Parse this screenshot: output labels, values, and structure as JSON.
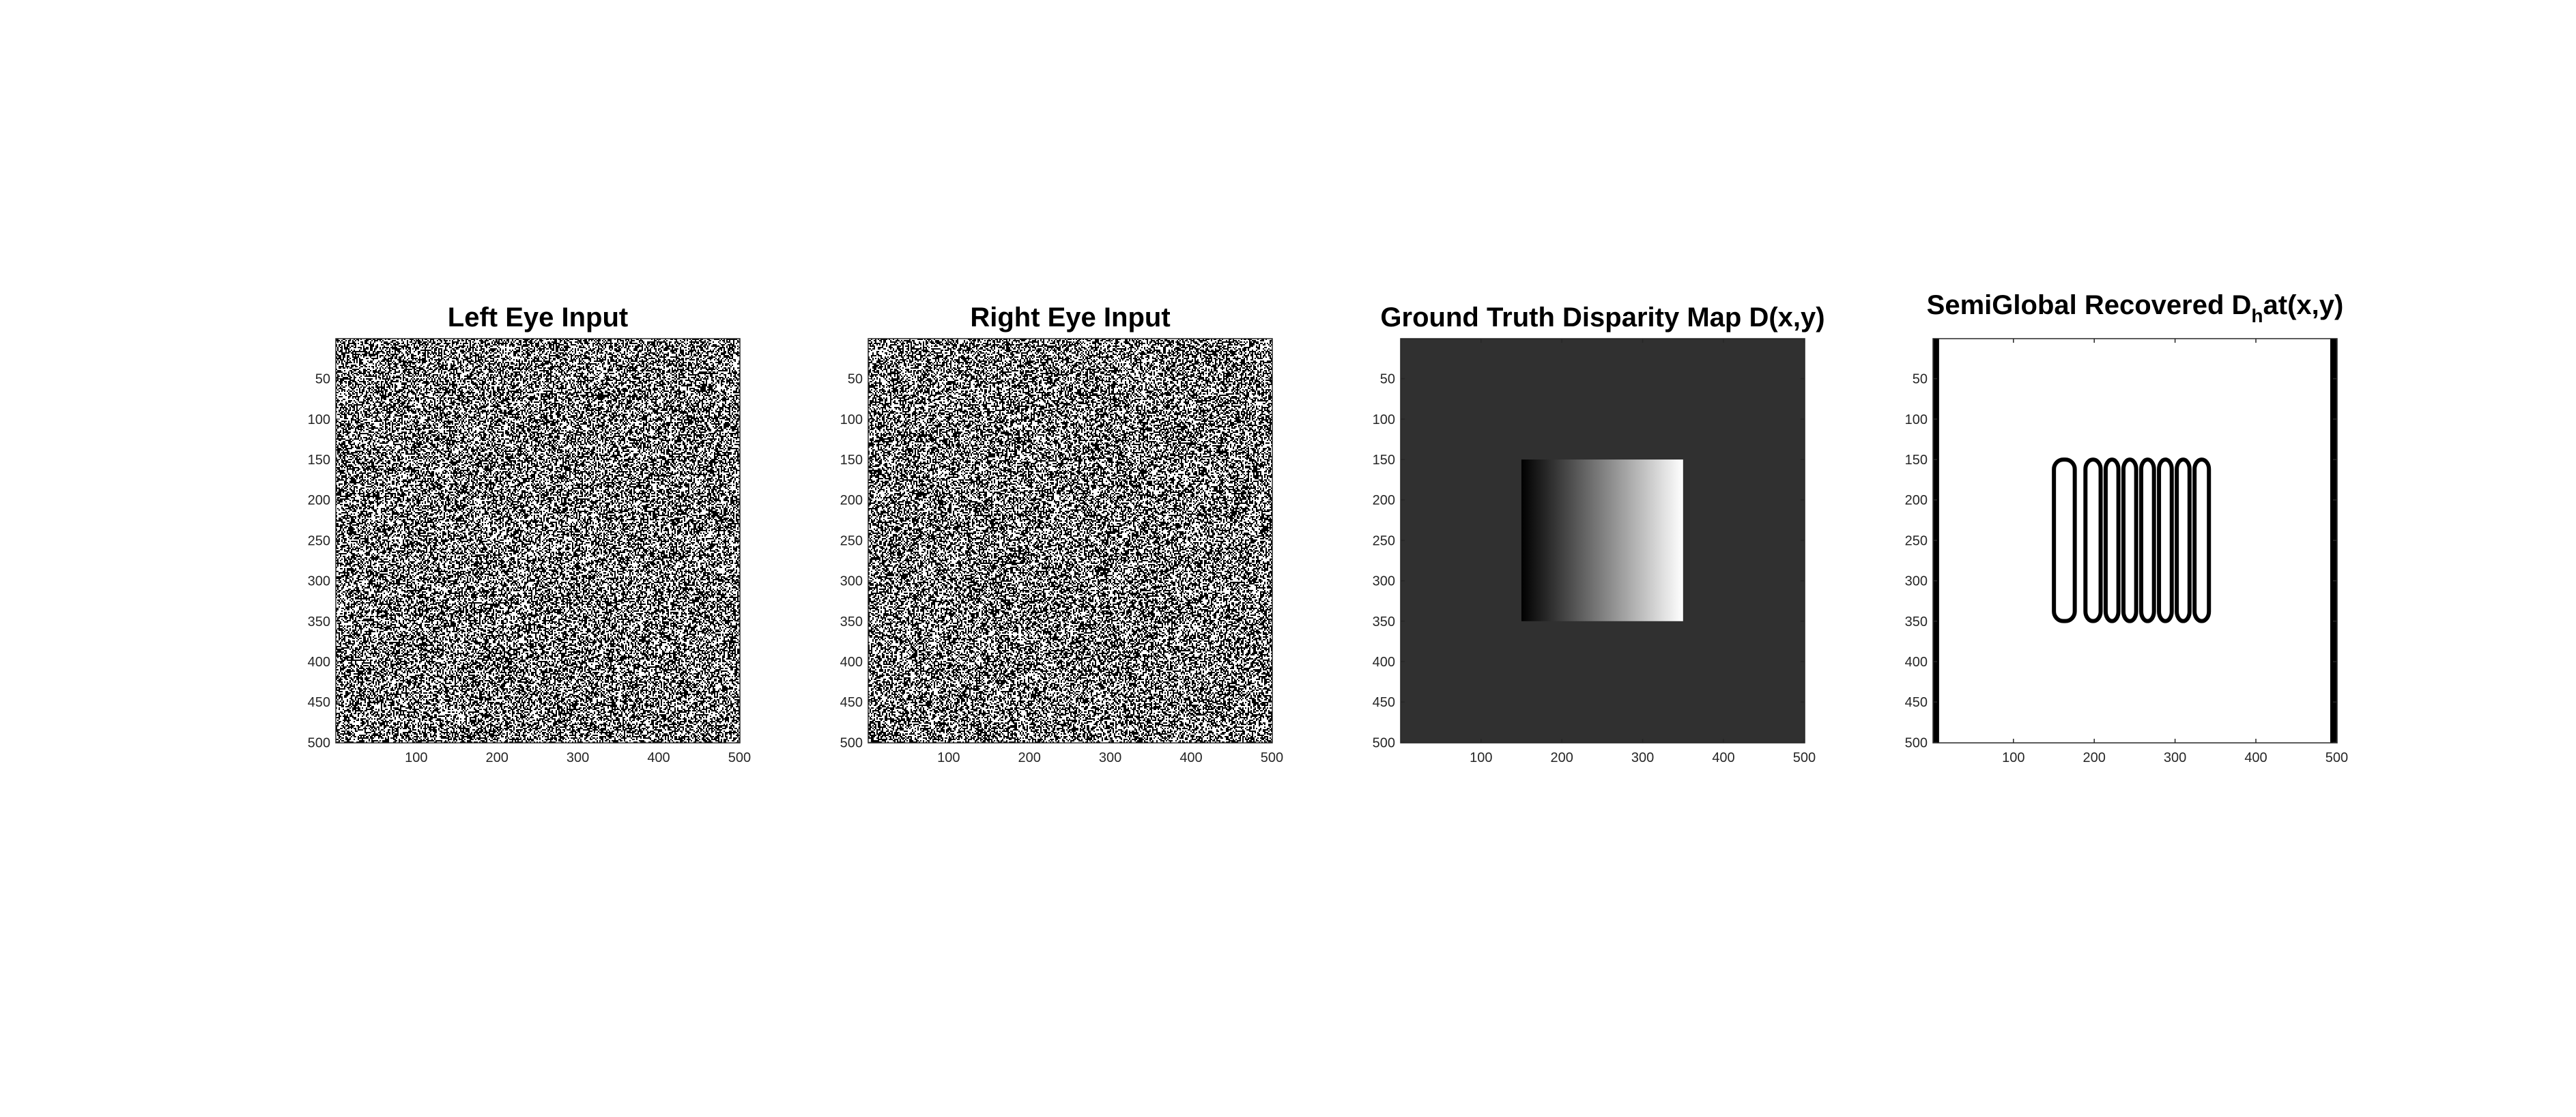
{
  "figure": {
    "background": "#ffffff",
    "axis_color": "#262626",
    "dark_gray": "#303030"
  },
  "chart_data": [
    {
      "type": "heatmap",
      "title": "Left Eye Input",
      "content": "random-dot binary noise (black/white)",
      "xlim": [
        0.5,
        500.5
      ],
      "ylim": [
        0.5,
        500.5
      ],
      "y_reversed": true,
      "xticks": [
        100,
        200,
        300,
        400,
        500
      ],
      "yticks": [
        50,
        100,
        150,
        200,
        250,
        300,
        350,
        400,
        450,
        500
      ],
      "xticklabels": [
        "100",
        "200",
        "300",
        "400",
        "500"
      ],
      "yticklabels": [
        "50",
        "100",
        "150",
        "200",
        "250",
        "300",
        "350",
        "400",
        "450",
        "500"
      ],
      "colormap": "gray"
    },
    {
      "type": "heatmap",
      "title": "Right Eye Input",
      "content": "random-dot binary noise (black/white)",
      "xlim": [
        0.5,
        500.5
      ],
      "ylim": [
        0.5,
        500.5
      ],
      "y_reversed": true,
      "xticks": [
        100,
        200,
        300,
        400,
        500
      ],
      "yticks": [
        50,
        100,
        150,
        200,
        250,
        300,
        350,
        400,
        450,
        500
      ],
      "xticklabels": [
        "100",
        "200",
        "300",
        "400",
        "500"
      ],
      "yticklabels": [
        "50",
        "100",
        "150",
        "200",
        "250",
        "300",
        "350",
        "400",
        "450",
        "500"
      ],
      "colormap": "gray"
    },
    {
      "type": "heatmap",
      "title": "Ground Truth Disparity Map D(x,y)",
      "xlim": [
        0.5,
        500.5
      ],
      "ylim": [
        0.5,
        500.5
      ],
      "y_reversed": true,
      "xticks": [
        100,
        200,
        300,
        400,
        500
      ],
      "yticks": [
        50,
        100,
        150,
        200,
        250,
        300,
        350,
        400,
        450,
        500
      ],
      "xticklabels": [
        "100",
        "200",
        "300",
        "400",
        "500"
      ],
      "yticklabels": [
        "50",
        "100",
        "150",
        "200",
        "250",
        "300",
        "350",
        "400",
        "450",
        "500"
      ],
      "colormap": "gray",
      "background_value_color": "#303030",
      "ramp_region": {
        "x": [
          150,
          350
        ],
        "y": [
          150,
          350
        ],
        "from_color": "#000000",
        "to_color": "#ffffff",
        "direction": "left-to-right"
      }
    },
    {
      "type": "heatmap",
      "title_parts": [
        "SemiGlobal Recovered D",
        "h",
        "at(x,y)"
      ],
      "xlim": [
        0.5,
        500.5
      ],
      "ylim": [
        0.5,
        500.5
      ],
      "y_reversed": true,
      "xticks": [
        100,
        200,
        300,
        400,
        500
      ],
      "yticks": [
        50,
        100,
        150,
        200,
        250,
        300,
        350,
        400,
        450,
        500
      ],
      "xticklabels": [
        "100",
        "200",
        "300",
        "400",
        "500"
      ],
      "yticklabels": [
        "50",
        "100",
        "150",
        "200",
        "250",
        "300",
        "350",
        "400",
        "450",
        "500"
      ],
      "colormap": "gray",
      "background_value_color": "#ffffff",
      "edge_bars_x": [
        [
          1,
          8
        ],
        [
          492,
          500
        ]
      ],
      "stripe_columns_x": [
        [
          148,
          178
        ],
        [
          187,
          210
        ],
        [
          212,
          232
        ],
        [
          234,
          254
        ],
        [
          256,
          276
        ],
        [
          278,
          298
        ],
        [
          300,
          320
        ],
        [
          322,
          344
        ]
      ],
      "stripe_rows_y": [
        148,
        352
      ]
    }
  ]
}
